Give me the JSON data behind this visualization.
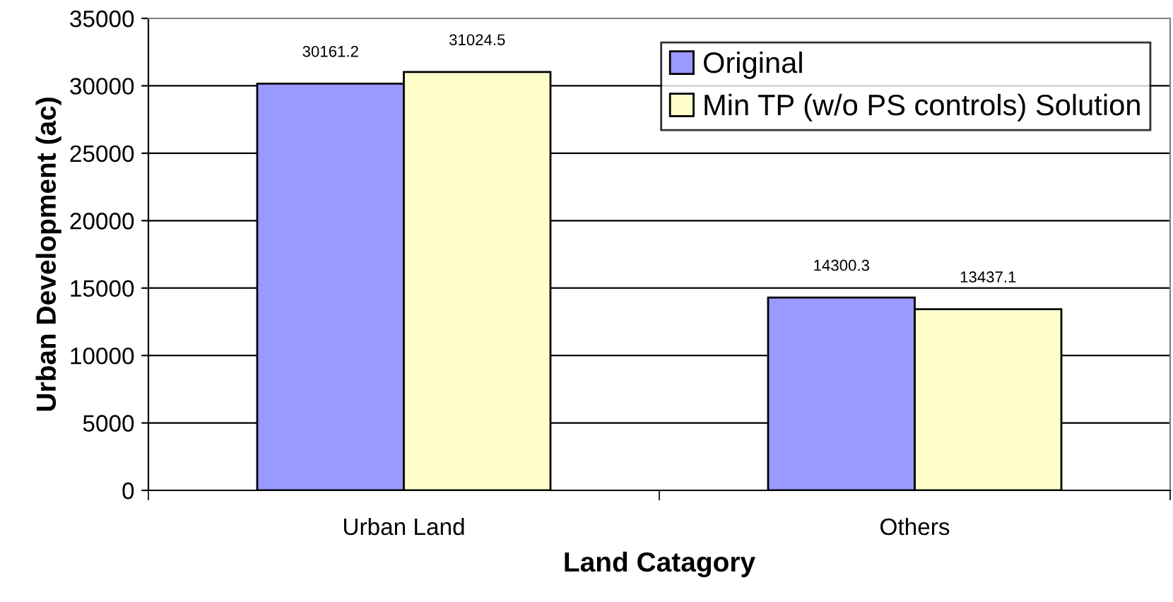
{
  "chart_data": {
    "type": "bar",
    "xlabel": "Land Catagory",
    "ylabel": "Urban Development (ac)",
    "categories": [
      "Urban Land",
      "Others"
    ],
    "series": [
      {
        "name": "Original",
        "color": "#9999ff",
        "values": [
          30161.2,
          14300.3
        ]
      },
      {
        "name": "Min TP (w/o PS controls) Solution",
        "color": "#ffffcc",
        "values": [
          31024.5,
          13437.1
        ]
      }
    ],
    "ylim": [
      0,
      35000
    ],
    "yticks": [
      0,
      5000,
      10000,
      15000,
      20000,
      25000,
      30000,
      35000
    ],
    "grid": "y",
    "legend": "top right",
    "data_labels": true
  }
}
